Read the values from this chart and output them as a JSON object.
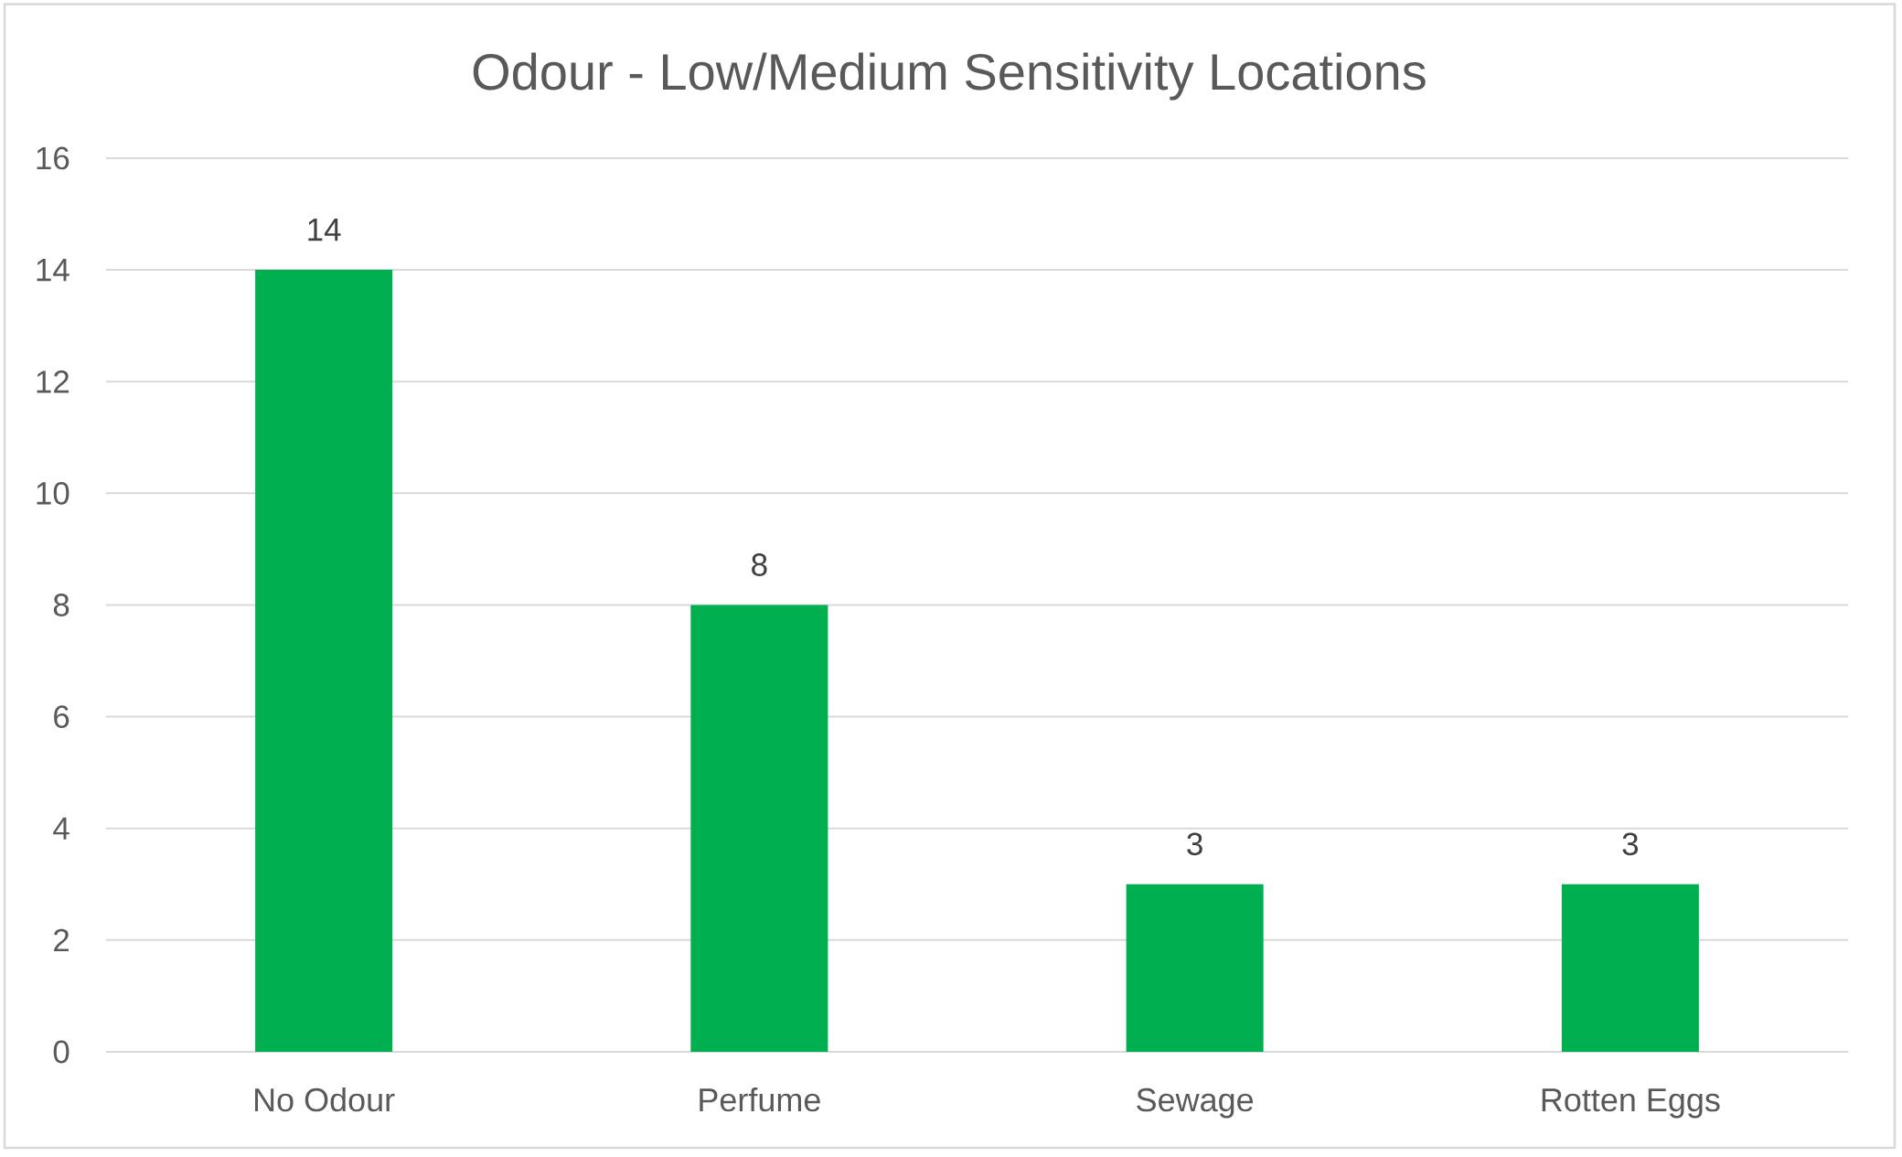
{
  "chart_data": {
    "type": "bar",
    "title": "Odour - Low/Medium Sensitivity Locations",
    "categories": [
      "No Odour",
      "Perfume",
      "Sewage",
      "Rotten Eggs"
    ],
    "values": [
      14,
      8,
      3,
      3
    ],
    "color": "#00b050",
    "ylim": [
      0,
      16
    ],
    "yticks": [
      0,
      2,
      4,
      6,
      8,
      10,
      12,
      14,
      16
    ],
    "grid": "y",
    "data_labels": true
  }
}
